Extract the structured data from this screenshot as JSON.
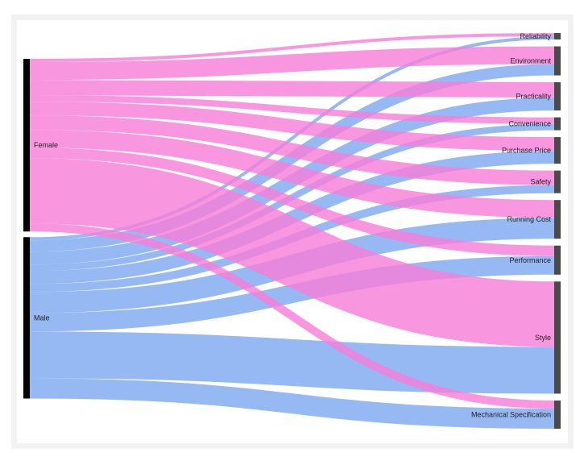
{
  "chart_data": {
    "type": "sankey",
    "title": "",
    "sources": [
      "Female",
      "Male"
    ],
    "targets": [
      "Reliability",
      "Environment",
      "Practicality",
      "Convenience",
      "Purchase Price",
      "Safety",
      "Running Cost",
      "Performance",
      "Style",
      "Mechanical Specification"
    ],
    "series": [
      {
        "name": "Female",
        "color": "#f67fd9",
        "values": [
          4,
          22,
          19,
          8,
          17,
          18,
          22,
          13,
          81,
          10
        ]
      },
      {
        "name": "Male",
        "color": "#7fa9f1",
        "values": [
          4,
          14,
          16,
          8,
          16,
          10,
          26,
          23,
          58,
          25
        ]
      }
    ],
    "source_node_color": "#000000",
    "target_node_color": "#4a4a4a"
  }
}
